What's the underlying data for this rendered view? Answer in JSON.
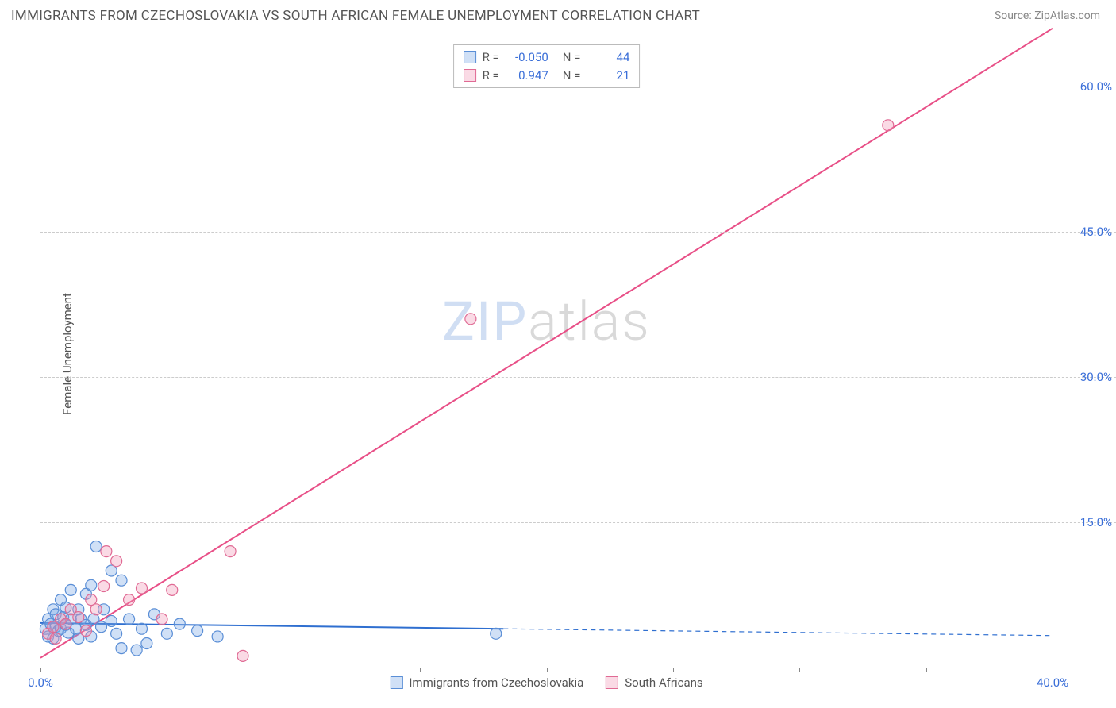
{
  "header": {
    "title": "IMMIGRANTS FROM CZECHOSLOVAKIA VS SOUTH AFRICAN FEMALE UNEMPLOYMENT CORRELATION CHART",
    "source": "Source: ZipAtlas.com"
  },
  "ylabel": "Female Unemployment",
  "watermark": {
    "part1": "ZIP",
    "part2": "atlas"
  },
  "chart": {
    "type": "scatter",
    "background_color": "#ffffff",
    "grid_color": "#cccccc",
    "axis_color": "#888888",
    "tick_label_color": "#3b6fd8",
    "xlim": [
      0,
      40
    ],
    "ylim": [
      0,
      65
    ],
    "xticks": [
      0,
      5,
      10,
      15,
      20,
      25,
      30,
      35,
      40
    ],
    "xtick_labels": {
      "0": "0.0%",
      "40": "40.0%"
    },
    "yticks": [
      15,
      30,
      45,
      60
    ],
    "ytick_labels": {
      "15": "15.0%",
      "30": "30.0%",
      "45": "45.0%",
      "60": "60.0%"
    },
    "marker_radius": 7,
    "marker_stroke_width": 1.2,
    "line_width": 2,
    "series": [
      {
        "key": "blue",
        "label": "Immigrants from Czechoslovakia",
        "fill": "rgba(120,165,230,0.35)",
        "stroke": "#5a8ed6",
        "line_color": "#2f6fd0",
        "R": "-0.050",
        "N": "44",
        "points": [
          [
            0.2,
            4.0
          ],
          [
            0.3,
            3.2
          ],
          [
            0.3,
            5.0
          ],
          [
            0.4,
            4.5
          ],
          [
            0.5,
            6.0
          ],
          [
            0.5,
            3.0
          ],
          [
            0.6,
            4.2
          ],
          [
            0.6,
            5.5
          ],
          [
            0.7,
            3.8
          ],
          [
            0.8,
            7.0
          ],
          [
            0.8,
            4.0
          ],
          [
            0.9,
            5.2
          ],
          [
            1.0,
            4.4
          ],
          [
            1.0,
            6.2
          ],
          [
            1.1,
            3.6
          ],
          [
            1.2,
            5.0
          ],
          [
            1.2,
            8.0
          ],
          [
            1.4,
            4.0
          ],
          [
            1.5,
            6.0
          ],
          [
            1.5,
            3.0
          ],
          [
            1.6,
            5.0
          ],
          [
            1.8,
            4.4
          ],
          [
            1.8,
            7.6
          ],
          [
            2.0,
            8.5
          ],
          [
            2.0,
            3.2
          ],
          [
            2.1,
            5.0
          ],
          [
            2.2,
            12.5
          ],
          [
            2.4,
            4.2
          ],
          [
            2.5,
            6.0
          ],
          [
            2.8,
            10.0
          ],
          [
            2.8,
            4.8
          ],
          [
            3.0,
            3.5
          ],
          [
            3.2,
            9.0
          ],
          [
            3.2,
            2.0
          ],
          [
            3.5,
            5.0
          ],
          [
            3.8,
            1.8
          ],
          [
            4.0,
            4.0
          ],
          [
            4.2,
            2.5
          ],
          [
            4.5,
            5.5
          ],
          [
            5.0,
            3.5
          ],
          [
            5.5,
            4.5
          ],
          [
            6.2,
            3.8
          ],
          [
            7.0,
            3.2
          ],
          [
            18.0,
            3.5
          ]
        ],
        "trend": {
          "x1": 0,
          "y1": 4.6,
          "x2": 18.3,
          "y2": 4.0,
          "extend_x2": 40,
          "extend_y2": 3.3
        }
      },
      {
        "key": "pink",
        "label": "South Africans",
        "fill": "rgba(240,150,180,0.35)",
        "stroke": "#e06a94",
        "line_color": "#e84f87",
        "R": "0.947",
        "N": "21",
        "points": [
          [
            0.3,
            3.5
          ],
          [
            0.5,
            4.2
          ],
          [
            0.6,
            3.0
          ],
          [
            0.8,
            5.0
          ],
          [
            1.0,
            4.5
          ],
          [
            1.2,
            6.0
          ],
          [
            1.5,
            5.2
          ],
          [
            1.8,
            3.8
          ],
          [
            2.0,
            7.0
          ],
          [
            2.2,
            6.0
          ],
          [
            2.5,
            8.4
          ],
          [
            2.6,
            12.0
          ],
          [
            3.0,
            11.0
          ],
          [
            3.5,
            7.0
          ],
          [
            4.0,
            8.2
          ],
          [
            4.8,
            5.0
          ],
          [
            5.2,
            8.0
          ],
          [
            7.5,
            12.0
          ],
          [
            8.0,
            1.2
          ],
          [
            17.0,
            36.0
          ],
          [
            33.5,
            56.0
          ]
        ],
        "trend": {
          "x1": 0,
          "y1": 1.0,
          "x2": 40,
          "y2": 66.0
        }
      }
    ]
  },
  "top_legend": {
    "r_label": "R =",
    "n_label": "N ="
  },
  "bottom_legend": {
    "items": [
      "blue",
      "pink"
    ]
  }
}
